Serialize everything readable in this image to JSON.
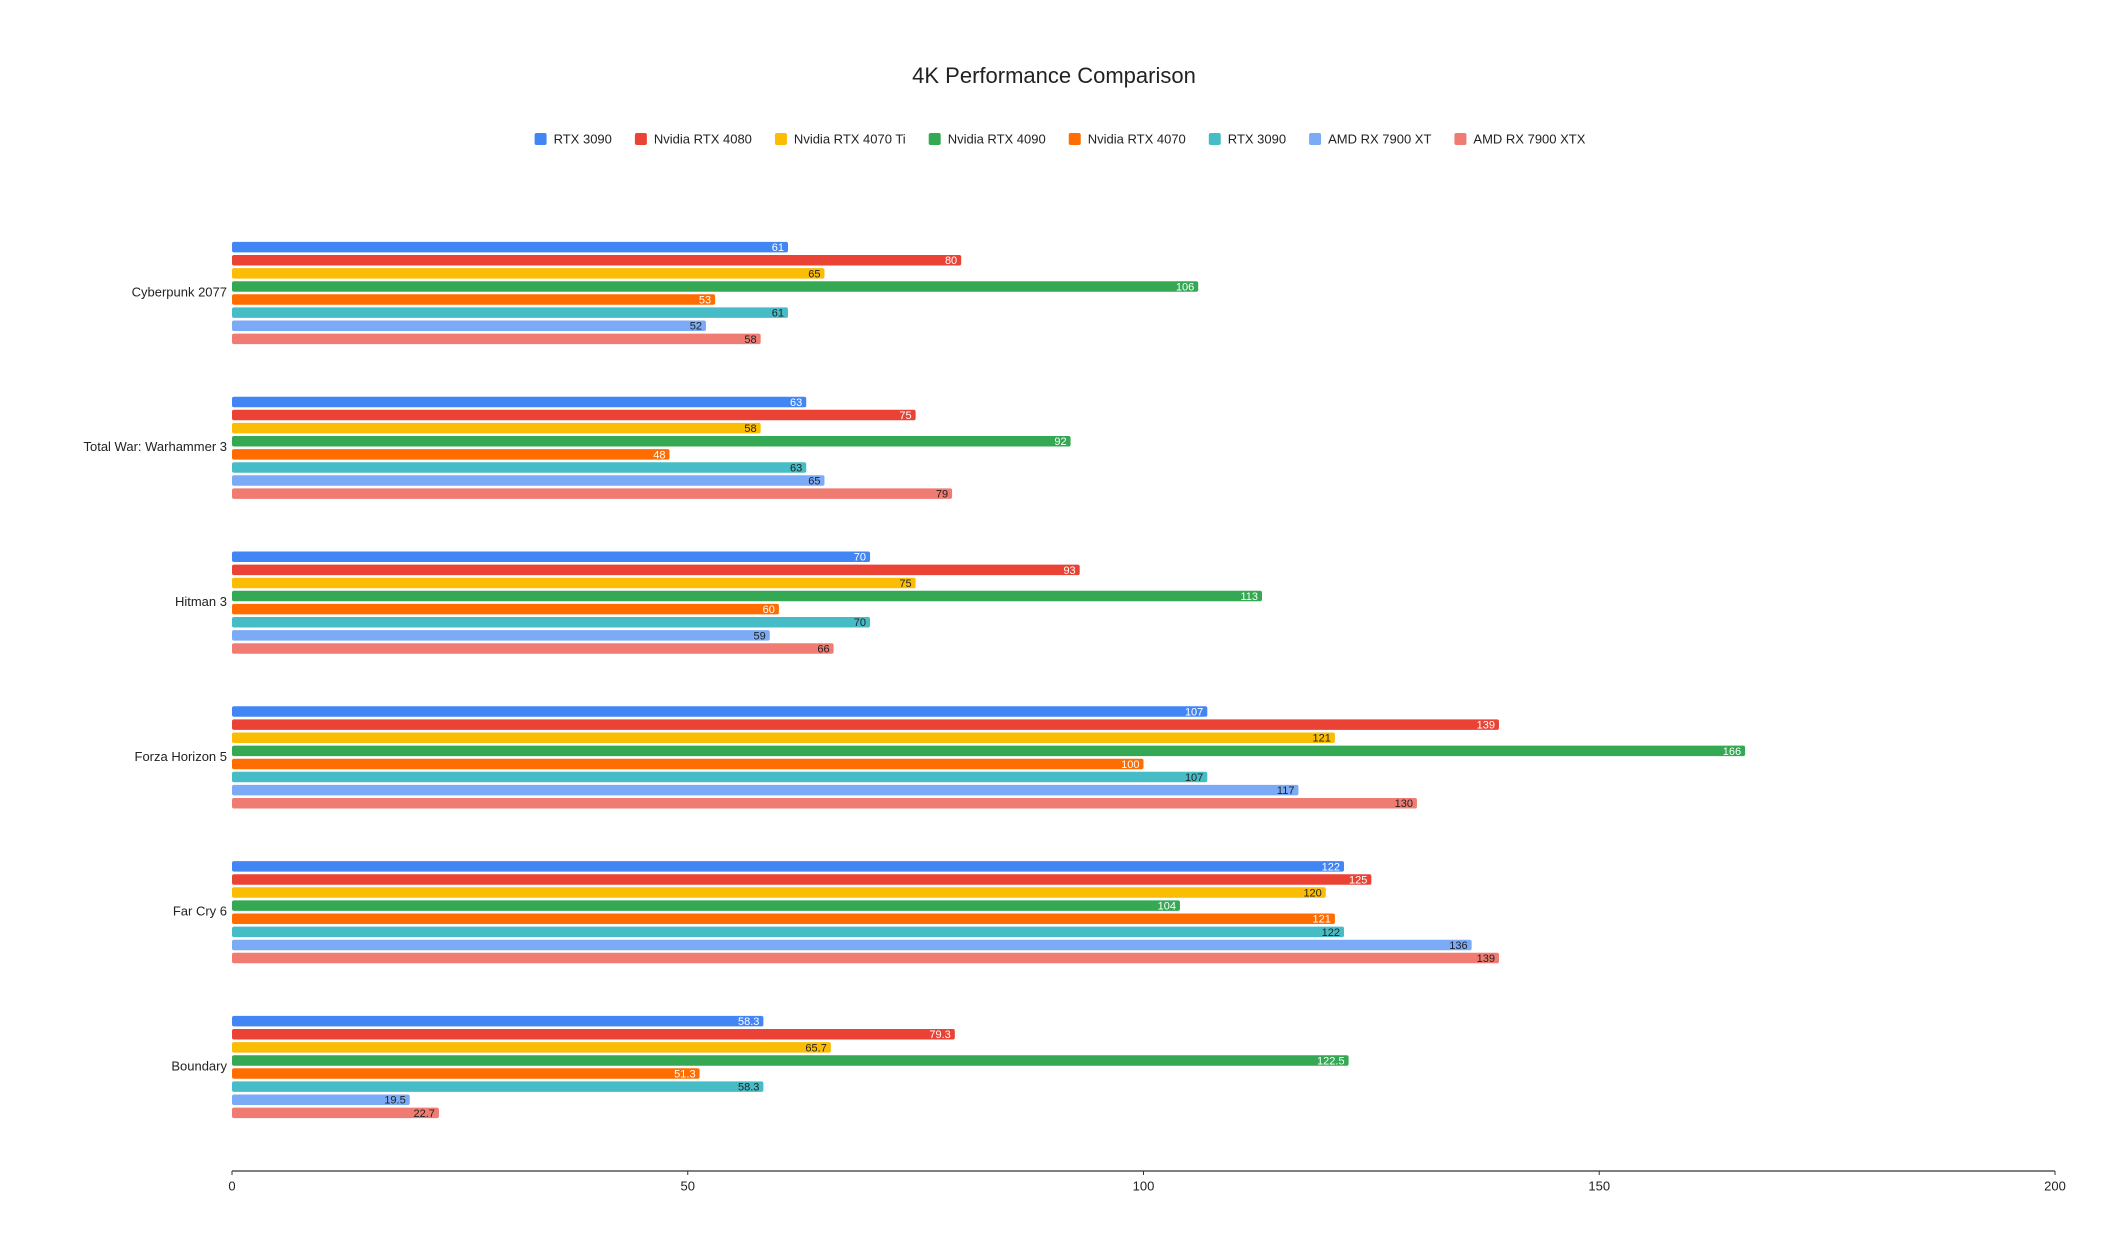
{
  "chart_data": {
    "type": "bar",
    "orientation": "horizontal",
    "title": "4K Performance Comparison",
    "categories": [
      "Cyberpunk 2077",
      "Total War: Warhammer 3",
      "Hitman 3",
      "Forza Horizon 5",
      "Far Cry 6",
      "Boundary"
    ],
    "series": [
      {
        "name": "RTX 3090",
        "color": "#4285f4",
        "values": [
          61,
          63,
          70,
          107,
          122,
          58.3
        ]
      },
      {
        "name": "Nvidia RTX 4080",
        "color": "#ea4335",
        "values": [
          80,
          75,
          93,
          139,
          125,
          79.3
        ]
      },
      {
        "name": "Nvidia RTX 4070 Ti",
        "color": "#fbbc04",
        "values": [
          65,
          58,
          75,
          121,
          120,
          65.7
        ]
      },
      {
        "name": "Nvidia RTX 4090",
        "color": "#34a853",
        "values": [
          106,
          92,
          113,
          166,
          104,
          122.5
        ]
      },
      {
        "name": "Nvidia RTX 4070",
        "color": "#ff6d01",
        "values": [
          53,
          48,
          60,
          100,
          121,
          51.3
        ]
      },
      {
        "name": "RTX 3090",
        "color": "#46bdc6",
        "values": [
          61,
          63,
          70,
          107,
          122,
          58.3
        ]
      },
      {
        "name": "AMD RX 7900 XT",
        "color": "#7baaf7",
        "values": [
          52,
          65,
          59,
          117,
          136,
          19.5
        ]
      },
      {
        "name": "AMD RX 7900 XTX",
        "color": "#f07b72",
        "values": [
          58,
          79,
          66,
          130,
          139,
          22.7
        ]
      }
    ],
    "xlim": [
      0,
      200
    ],
    "xticks": [
      0,
      50,
      100,
      150,
      200
    ],
    "grid": false,
    "legend": "top"
  }
}
